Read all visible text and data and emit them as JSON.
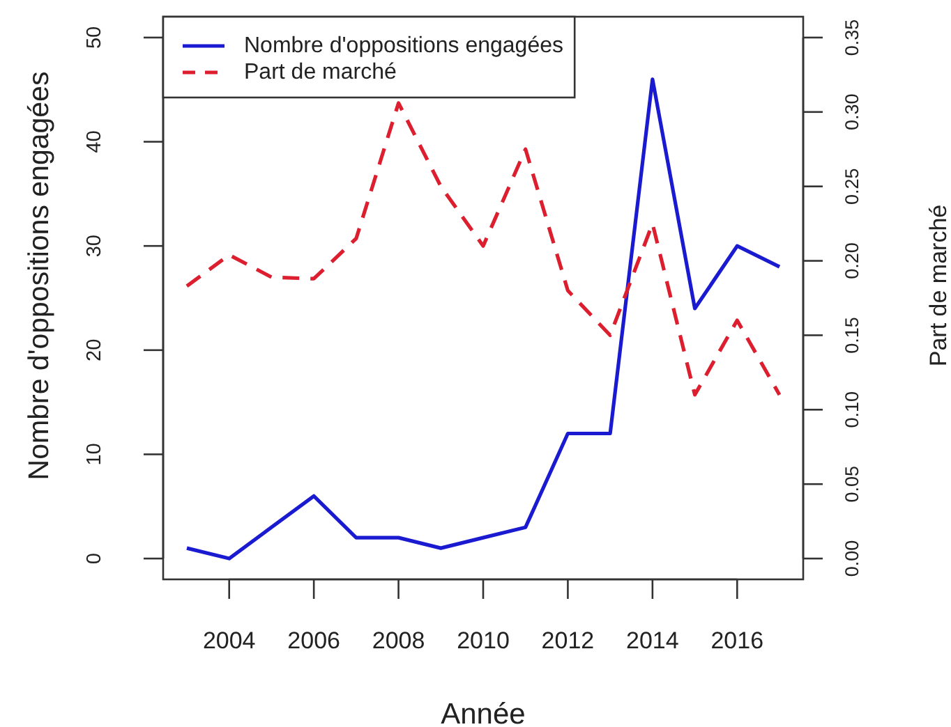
{
  "chart_data": {
    "type": "line",
    "xlabel": "Année",
    "ylabel": "Nombre d'oppositions engagées",
    "y2label": "Part de marché",
    "x": [
      2003,
      2004,
      2005,
      2006,
      2007,
      2008,
      2009,
      2010,
      2011,
      2012,
      2013,
      2014,
      2015,
      2016,
      2017
    ],
    "series": [
      {
        "name": "Nombre d'oppositions engagées",
        "color": "#1a1ad0",
        "line_style": "solid",
        "values": [
          1,
          0,
          3,
          6,
          2,
          2,
          1,
          2,
          3,
          12,
          12,
          46,
          24,
          30,
          28
        ]
      },
      {
        "name": "Part de marché",
        "color": "#dc1e2e",
        "line_style": "dashed",
        "axis": "y2",
        "values": [
          0.183,
          0.204,
          0.189,
          0.188,
          0.215,
          0.306,
          0.25,
          0.21,
          0.275,
          0.18,
          0.15,
          0.225,
          0.11,
          0.16,
          0.11
        ]
      }
    ],
    "xlim": [
      2002.44,
      2017.56
    ],
    "xticks": [
      2004,
      2006,
      2008,
      2010,
      2012,
      2014,
      2016
    ],
    "ylim": [
      -2,
      52
    ],
    "yticks": [
      0,
      10,
      20,
      30,
      40,
      50
    ],
    "y2lim": [
      -0.014,
      0.364
    ],
    "y2ticks": [
      {
        "value": 0,
        "label": "0.00"
      },
      {
        "value": 0.05,
        "label": "0.05"
      },
      {
        "value": 0.1,
        "label": "0.10"
      },
      {
        "value": 0.15,
        "label": "0.15"
      },
      {
        "value": 0.2,
        "label": "0.20"
      },
      {
        "value": 0.25,
        "label": "0.25"
      },
      {
        "value": 0.3,
        "label": "0.30"
      },
      {
        "value": 0.35,
        "label": "0.35"
      }
    ],
    "legend": "top left"
  }
}
